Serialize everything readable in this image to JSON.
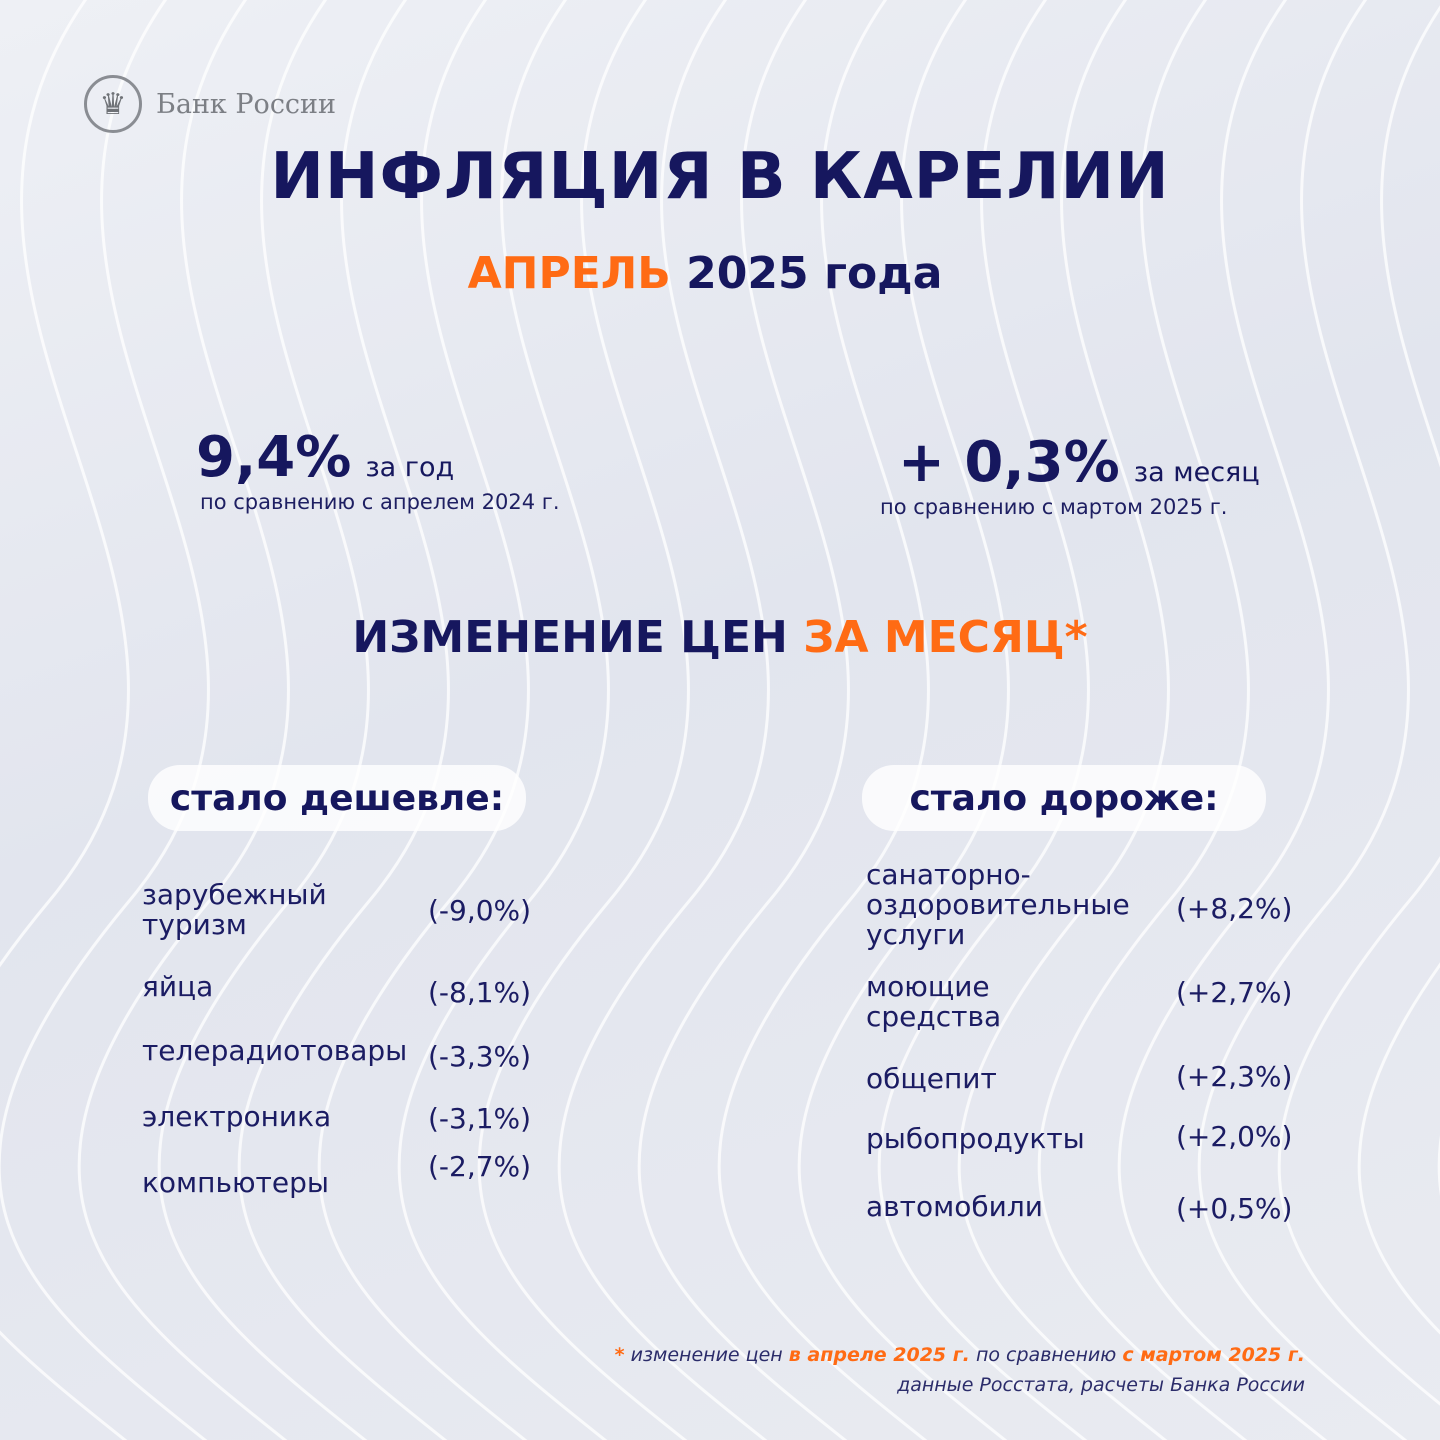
{
  "brand": {
    "name": "Банк России",
    "icon": "eagle-emblem-icon"
  },
  "title": "ИНФЛЯЦИЯ В КАРЕЛИИ",
  "subtitle": {
    "month": "АПРЕЛЬ",
    "year": "2025 года"
  },
  "annual": {
    "value": "9,4%",
    "unit": "за год",
    "comparison": "по сравнению с апрелем 2024 г."
  },
  "monthly": {
    "value": "+ 0,3%",
    "unit": "за месяц",
    "comparison": "по сравнению с мартом 2025 г."
  },
  "section": {
    "prefix": "ИЗМЕНЕНИЕ ЦЕН",
    "highlight": "ЗА МЕСЯЦ*"
  },
  "cheaper": {
    "label": "стало дешевле:",
    "items": [
      {
        "name": "зарубежный\nтуризм",
        "value": "(-9,0%)"
      },
      {
        "name": "яйца",
        "value": "(-8,1%)"
      },
      {
        "name": "телерадиотовары",
        "value": "(-3,3%)"
      },
      {
        "name": "электроника",
        "value": "(-3,1%)"
      },
      {
        "name": "компьютеры",
        "value": "(-2,7%)"
      }
    ]
  },
  "pricier": {
    "label": "стало дороже:",
    "items": [
      {
        "name": "санаторно-\nоздоровительные\nуслуги",
        "value": "(+8,2%)"
      },
      {
        "name": "моющие\nсредства",
        "value": "(+2,7%)"
      },
      {
        "name": "общепит",
        "value": "(+2,3%)"
      },
      {
        "name": "рыбопродукты",
        "value": "(+2,0%)"
      },
      {
        "name": "автомобили",
        "value": "(+0,5%)"
      }
    ]
  },
  "footnote": {
    "star": "*",
    "t1": "изменение цен",
    "h1": "в апреле 2025 г.",
    "t2": "по сравнению",
    "h2": "с мартом 2025 г.",
    "source": "данные Росстата, расчеты Банка России"
  },
  "colors": {
    "navy": "#16175e",
    "orange": "#ff6b14",
    "background": "#e4e7ee"
  }
}
